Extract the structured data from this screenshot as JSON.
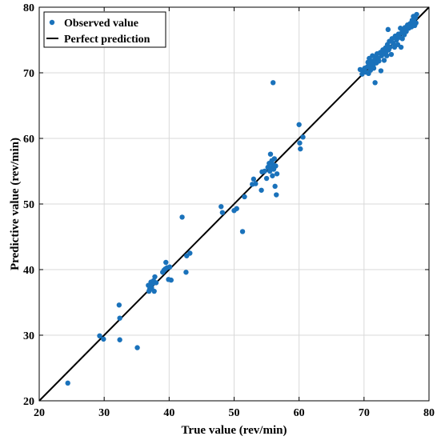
{
  "chart_data": {
    "type": "scatter",
    "xlabel": "True value (rev/min)",
    "ylabel": "Predictive value (rev/min)",
    "xlim": [
      20,
      80
    ],
    "ylim": [
      20,
      80
    ],
    "xticks": [
      "20",
      "30",
      "40",
      "50",
      "60",
      "70",
      "80"
    ],
    "yticks": [
      "20",
      "30",
      "40",
      "50",
      "60",
      "70",
      "80"
    ],
    "grid": true,
    "legend_position": "top-left",
    "colors": {
      "points": "#1a72bb",
      "line": "#000000",
      "grid": "#d9d9d9"
    },
    "series": [
      {
        "name": "Observed value",
        "kind": "scatter",
        "points": [
          [
            24.4,
            22.7
          ],
          [
            29.3,
            29.9
          ],
          [
            29.9,
            29.4
          ],
          [
            32.3,
            34.6
          ],
          [
            32.4,
            32.6
          ],
          [
            32.4,
            29.3
          ],
          [
            35.1,
            28.1
          ],
          [
            36.8,
            37.6
          ],
          [
            36.9,
            36.7
          ],
          [
            37.0,
            37.0
          ],
          [
            37.1,
            37.4
          ],
          [
            37.2,
            38.1
          ],
          [
            37.3,
            37.2
          ],
          [
            37.5,
            37.9
          ],
          [
            37.6,
            38.3
          ],
          [
            37.7,
            36.7
          ],
          [
            37.8,
            38.9
          ],
          [
            38.0,
            38.0
          ],
          [
            39.0,
            39.6
          ],
          [
            39.2,
            39.9
          ],
          [
            39.4,
            40.1
          ],
          [
            39.5,
            41.1
          ],
          [
            39.7,
            40.3
          ],
          [
            39.9,
            38.5
          ],
          [
            40.1,
            40.4
          ],
          [
            40.3,
            38.4
          ],
          [
            42.0,
            48.0
          ],
          [
            42.6,
            39.6
          ],
          [
            42.7,
            42.1
          ],
          [
            43.2,
            42.5
          ],
          [
            48.0,
            49.6
          ],
          [
            48.2,
            48.7
          ],
          [
            50.0,
            49.0
          ],
          [
            50.4,
            49.3
          ],
          [
            51.3,
            45.8
          ],
          [
            51.6,
            51.1
          ],
          [
            52.8,
            53.0
          ],
          [
            53.0,
            53.8
          ],
          [
            53.3,
            53.1
          ],
          [
            54.2,
            52.1
          ],
          [
            54.3,
            54.9
          ],
          [
            54.7,
            55.0
          ],
          [
            55.0,
            53.9
          ],
          [
            55.2,
            55.6
          ],
          [
            55.4,
            56.2
          ],
          [
            55.5,
            55.0
          ],
          [
            55.6,
            57.6
          ],
          [
            55.7,
            55.5
          ],
          [
            55.8,
            56.6
          ],
          [
            55.9,
            54.3
          ],
          [
            56.0,
            56.0
          ],
          [
            56.0,
            68.5
          ],
          [
            56.1,
            55.3
          ],
          [
            56.2,
            56.9
          ],
          [
            56.3,
            52.7
          ],
          [
            56.4,
            55.8
          ],
          [
            56.5,
            51.4
          ],
          [
            56.6,
            54.6
          ],
          [
            60.0,
            62.1
          ],
          [
            60.1,
            59.3
          ],
          [
            60.2,
            58.4
          ],
          [
            60.6,
            60.2
          ],
          [
            69.4,
            70.5
          ],
          [
            69.7,
            69.8
          ],
          [
            69.9,
            70.3
          ],
          [
            70.1,
            70.7
          ],
          [
            70.3,
            70.1
          ],
          [
            70.5,
            70.9
          ],
          [
            70.6,
            71.6
          ],
          [
            70.7,
            69.9
          ],
          [
            70.8,
            72.2
          ],
          [
            70.9,
            71.1
          ],
          [
            71.0,
            70.4
          ],
          [
            71.1,
            71.8
          ],
          [
            71.2,
            71.3
          ],
          [
            71.3,
            72.6
          ],
          [
            71.4,
            71.0
          ],
          [
            71.5,
            70.7
          ],
          [
            71.6,
            71.9
          ],
          [
            71.7,
            68.5
          ],
          [
            71.8,
            72.3
          ],
          [
            71.9,
            71.5
          ],
          [
            72.0,
            72.9
          ],
          [
            72.2,
            72.2
          ],
          [
            72.3,
            71.8
          ],
          [
            72.5,
            73.1
          ],
          [
            72.6,
            70.3
          ],
          [
            72.7,
            72.6
          ],
          [
            72.9,
            73.5
          ],
          [
            73.0,
            72.9
          ],
          [
            73.1,
            71.9
          ],
          [
            73.3,
            73.8
          ],
          [
            73.4,
            73.2
          ],
          [
            73.5,
            72.6
          ],
          [
            73.6,
            74.3
          ],
          [
            73.7,
            76.6
          ],
          [
            73.8,
            73.5
          ],
          [
            73.9,
            74.8
          ],
          [
            74.0,
            73.9
          ],
          [
            74.2,
            72.8
          ],
          [
            74.3,
            75.2
          ],
          [
            74.5,
            74.5
          ],
          [
            74.7,
            73.9
          ],
          [
            74.8,
            75.6
          ],
          [
            75.0,
            75.0
          ],
          [
            75.2,
            74.3
          ],
          [
            75.3,
            75.9
          ],
          [
            75.5,
            75.4
          ],
          [
            75.6,
            76.8
          ],
          [
            75.7,
            73.9
          ],
          [
            75.8,
            76.1
          ],
          [
            75.9,
            75.2
          ],
          [
            76.0,
            76.5
          ],
          [
            76.2,
            75.8
          ],
          [
            76.3,
            76.9
          ],
          [
            76.5,
            76.3
          ],
          [
            76.7,
            77.3
          ],
          [
            76.9,
            76.8
          ],
          [
            77.1,
            77.5
          ],
          [
            77.3,
            77.0
          ],
          [
            77.4,
            78.0
          ],
          [
            77.5,
            77.3
          ],
          [
            77.6,
            78.6
          ],
          [
            77.7,
            77.8
          ],
          [
            77.8,
            77.2
          ],
          [
            77.9,
            78.4
          ],
          [
            78.0,
            77.6
          ],
          [
            78.1,
            78.9
          ]
        ]
      },
      {
        "name": "Perfect prediction",
        "kind": "line",
        "points": [
          [
            20,
            20
          ],
          [
            80,
            80
          ]
        ]
      }
    ]
  }
}
